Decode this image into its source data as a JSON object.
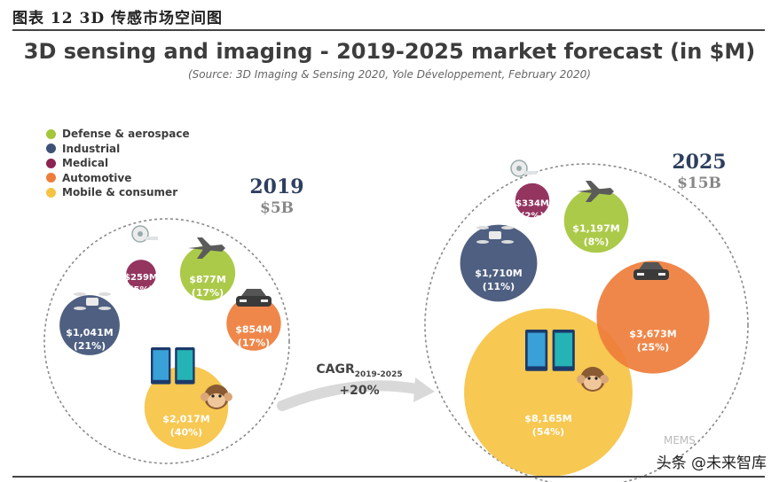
{
  "figure_caption": "图表 12 3D 传感市场空间图",
  "chart_data": {
    "type": "bubble",
    "title": "3D sensing and imaging - 2019-2025 market forecast (in $M)",
    "subtitle": "(Source: 3D Imaging & Sensing 2020, Yole Développement, February 2020)",
    "legend": [
      {
        "name": "Defense & aerospace",
        "color": "#a4c639"
      },
      {
        "name": "Industrial",
        "color": "#3f5176"
      },
      {
        "name": "Medical",
        "color": "#8b2453"
      },
      {
        "name": "Automotive",
        "color": "#ee7d3b"
      },
      {
        "name": "Mobile & consumer",
        "color": "#f6c343"
      }
    ],
    "years": [
      {
        "year": "2019",
        "total": "$5B",
        "segments": [
          {
            "name": "Defense & aerospace",
            "value": 877,
            "value_label": "$877M",
            "share_label": "(17%)"
          },
          {
            "name": "Industrial",
            "value": 1041,
            "value_label": "$1,041M",
            "share_label": "(21%)"
          },
          {
            "name": "Medical",
            "value": 259,
            "value_label": "$259M",
            "share_label": "(5%)"
          },
          {
            "name": "Automotive",
            "value": 854,
            "value_label": "$854M",
            "share_label": "(17%)"
          },
          {
            "name": "Mobile & consumer",
            "value": 2017,
            "value_label": "$2,017M",
            "share_label": "(40%)"
          }
        ]
      },
      {
        "year": "2025",
        "total": "$15B",
        "segments": [
          {
            "name": "Defense & aerospace",
            "value": 1197,
            "value_label": "$1,197M",
            "share_label": "(8%)"
          },
          {
            "name": "Industrial",
            "value": 1710,
            "value_label": "$1,710M",
            "share_label": "(11%)"
          },
          {
            "name": "Medical",
            "value": 334,
            "value_label": "$334M",
            "share_label": "(2%)"
          },
          {
            "name": "Automotive",
            "value": 3673,
            "value_label": "$3,673M",
            "share_label": "(25%)"
          },
          {
            "name": "Mobile & consumer",
            "value": 8165,
            "value_label": "$8,165M",
            "share_label": "(54%)"
          }
        ]
      }
    ],
    "cagr": {
      "label": "CAGR",
      "period": "2019-2025",
      "value": "+20%"
    }
  },
  "watermark": "头条 @未来智库",
  "faint_logo": "MEMS"
}
